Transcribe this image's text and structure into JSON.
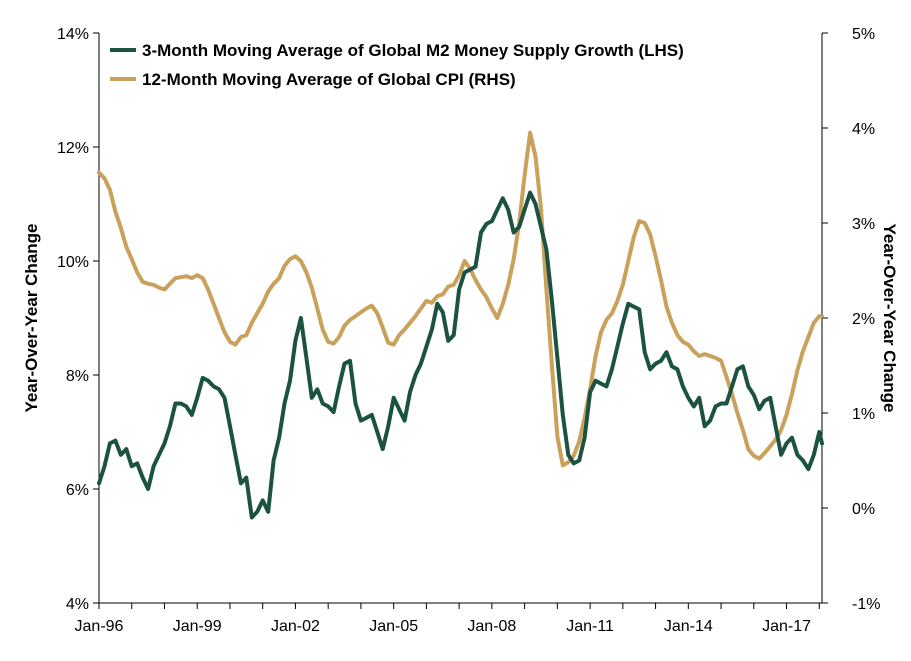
{
  "chart_data": {
    "type": "line",
    "x_start": "1996-01",
    "x_end": "2018-02",
    "x_ticks": [
      "Jan-96",
      "Jan-99",
      "Jan-02",
      "Jan-05",
      "Jan-08",
      "Jan-11",
      "Jan-14",
      "Jan-17"
    ],
    "y_left": {
      "label": "Year-Over-Year Change",
      "min": 4,
      "max": 14,
      "ticks": [
        "4%",
        "6%",
        "8%",
        "10%",
        "12%",
        "14%"
      ]
    },
    "y_right": {
      "label": "Year-Over-Year Change",
      "min": -1,
      "max": 5,
      "ticks": [
        "-1%",
        "0%",
        "1%",
        "2%",
        "3%",
        "4%",
        "5%"
      ]
    },
    "legend_position": "top-left",
    "series": [
      {
        "name": "3-Month Moving Average of Global M2 Money Supply Growth (LHS)",
        "axis": "left",
        "color": "#1b5240",
        "points": [
          [
            "1996-01",
            6.1
          ],
          [
            "1996-03",
            6.4
          ],
          [
            "1996-05",
            6.8
          ],
          [
            "1996-07",
            6.85
          ],
          [
            "1996-09",
            6.6
          ],
          [
            "1996-11",
            6.7
          ],
          [
            "1997-01",
            6.4
          ],
          [
            "1997-03",
            6.45
          ],
          [
            "1997-05",
            6.2
          ],
          [
            "1997-07",
            6.0
          ],
          [
            "1997-09",
            6.4
          ],
          [
            "1997-11",
            6.6
          ],
          [
            "1998-01",
            6.8
          ],
          [
            "1998-03",
            7.1
          ],
          [
            "1998-05",
            7.5
          ],
          [
            "1998-07",
            7.5
          ],
          [
            "1998-09",
            7.45
          ],
          [
            "1998-11",
            7.3
          ],
          [
            "1999-01",
            7.6
          ],
          [
            "1999-03",
            7.95
          ],
          [
            "1999-05",
            7.9
          ],
          [
            "1999-07",
            7.8
          ],
          [
            "1999-09",
            7.75
          ],
          [
            "1999-11",
            7.6
          ],
          [
            "2000-01",
            7.1
          ],
          [
            "2000-03",
            6.6
          ],
          [
            "2000-05",
            6.1
          ],
          [
            "2000-07",
            6.2
          ],
          [
            "2000-09",
            5.5
          ],
          [
            "2000-11",
            5.6
          ],
          [
            "2001-01",
            5.8
          ],
          [
            "2001-03",
            5.6
          ],
          [
            "2001-05",
            6.5
          ],
          [
            "2001-07",
            6.9
          ],
          [
            "2001-09",
            7.5
          ],
          [
            "2001-11",
            7.9
          ],
          [
            "2002-01",
            8.6
          ],
          [
            "2002-03",
            9.0
          ],
          [
            "2002-05",
            8.3
          ],
          [
            "2002-07",
            7.6
          ],
          [
            "2002-09",
            7.75
          ],
          [
            "2002-11",
            7.5
          ],
          [
            "2003-01",
            7.45
          ],
          [
            "2003-03",
            7.35
          ],
          [
            "2003-05",
            7.8
          ],
          [
            "2003-07",
            8.2
          ],
          [
            "2003-09",
            8.25
          ],
          [
            "2003-11",
            7.5
          ],
          [
            "2004-01",
            7.2
          ],
          [
            "2004-03",
            7.25
          ],
          [
            "2004-05",
            7.3
          ],
          [
            "2004-07",
            7.0
          ],
          [
            "2004-09",
            6.7
          ],
          [
            "2004-11",
            7.1
          ],
          [
            "2005-01",
            7.6
          ],
          [
            "2005-03",
            7.4
          ],
          [
            "2005-05",
            7.2
          ],
          [
            "2005-07",
            7.7
          ],
          [
            "2005-09",
            8.0
          ],
          [
            "2005-11",
            8.2
          ],
          [
            "2006-01",
            8.5
          ],
          [
            "2006-03",
            8.8
          ],
          [
            "2006-05",
            9.25
          ],
          [
            "2006-07",
            9.1
          ],
          [
            "2006-09",
            8.6
          ],
          [
            "2006-11",
            8.7
          ],
          [
            "2007-01",
            9.5
          ],
          [
            "2007-03",
            9.8
          ],
          [
            "2007-05",
            9.85
          ],
          [
            "2007-07",
            9.9
          ],
          [
            "2007-09",
            10.5
          ],
          [
            "2007-11",
            10.65
          ],
          [
            "2008-01",
            10.7
          ],
          [
            "2008-03",
            10.9
          ],
          [
            "2008-05",
            11.1
          ],
          [
            "2008-07",
            10.9
          ],
          [
            "2008-09",
            10.5
          ],
          [
            "2008-11",
            10.6
          ],
          [
            "2009-01",
            10.9
          ],
          [
            "2009-03",
            11.2
          ],
          [
            "2009-05",
            11.0
          ],
          [
            "2009-07",
            10.6
          ],
          [
            "2009-09",
            10.2
          ],
          [
            "2009-11",
            9.3
          ],
          [
            "2010-01",
            8.3
          ],
          [
            "2010-03",
            7.3
          ],
          [
            "2010-05",
            6.6
          ],
          [
            "2010-07",
            6.45
          ],
          [
            "2010-09",
            6.5
          ],
          [
            "2010-11",
            6.9
          ],
          [
            "2011-01",
            7.7
          ],
          [
            "2011-03",
            7.9
          ],
          [
            "2011-05",
            7.85
          ],
          [
            "2011-07",
            7.8
          ],
          [
            "2011-09",
            8.1
          ],
          [
            "2011-11",
            8.5
          ],
          [
            "2012-01",
            8.9
          ],
          [
            "2012-03",
            9.25
          ],
          [
            "2012-05",
            9.2
          ],
          [
            "2012-07",
            9.15
          ],
          [
            "2012-09",
            8.4
          ],
          [
            "2012-11",
            8.1
          ],
          [
            "2013-01",
            8.2
          ],
          [
            "2013-03",
            8.25
          ],
          [
            "2013-05",
            8.4
          ],
          [
            "2013-07",
            8.15
          ],
          [
            "2013-09",
            8.1
          ],
          [
            "2013-11",
            7.8
          ],
          [
            "2014-01",
            7.6
          ],
          [
            "2014-03",
            7.45
          ],
          [
            "2014-05",
            7.6
          ],
          [
            "2014-07",
            7.1
          ],
          [
            "2014-09",
            7.2
          ],
          [
            "2014-11",
            7.45
          ],
          [
            "2015-01",
            7.5
          ],
          [
            "2015-03",
            7.5
          ],
          [
            "2015-05",
            7.8
          ],
          [
            "2015-07",
            8.1
          ],
          [
            "2015-09",
            8.15
          ],
          [
            "2015-11",
            7.8
          ],
          [
            "2016-01",
            7.65
          ],
          [
            "2016-03",
            7.4
          ],
          [
            "2016-05",
            7.55
          ],
          [
            "2016-07",
            7.6
          ],
          [
            "2016-09",
            7.1
          ],
          [
            "2016-11",
            6.6
          ],
          [
            "2017-01",
            6.8
          ],
          [
            "2017-03",
            6.9
          ],
          [
            "2017-05",
            6.6
          ],
          [
            "2017-07",
            6.5
          ],
          [
            "2017-09",
            6.35
          ],
          [
            "2017-11",
            6.6
          ],
          [
            "2018-01",
            7.0
          ],
          [
            "2018-02",
            6.8
          ]
        ]
      },
      {
        "name": "12-Month Moving Average of Global CPI (RHS)",
        "axis": "right",
        "color": "#c9a15b",
        "points": [
          [
            "1996-01",
            3.53
          ],
          [
            "1996-03",
            3.47
          ],
          [
            "1996-05",
            3.35
          ],
          [
            "1996-07",
            3.12
          ],
          [
            "1996-09",
            2.95
          ],
          [
            "1996-11",
            2.75
          ],
          [
            "1997-01",
            2.62
          ],
          [
            "1997-03",
            2.48
          ],
          [
            "1997-05",
            2.38
          ],
          [
            "1997-07",
            2.36
          ],
          [
            "1997-09",
            2.35
          ],
          [
            "1997-11",
            2.32
          ],
          [
            "1998-01",
            2.3
          ],
          [
            "1998-03",
            2.36
          ],
          [
            "1998-05",
            2.42
          ],
          [
            "1998-07",
            2.43
          ],
          [
            "1998-09",
            2.44
          ],
          [
            "1998-11",
            2.42
          ],
          [
            "1999-01",
            2.45
          ],
          [
            "1999-03",
            2.42
          ],
          [
            "1999-05",
            2.3
          ],
          [
            "1999-07",
            2.15
          ],
          [
            "1999-09",
            2.0
          ],
          [
            "1999-11",
            1.85
          ],
          [
            "2000-01",
            1.75
          ],
          [
            "2000-03",
            1.72
          ],
          [
            "2000-05",
            1.8
          ],
          [
            "2000-07",
            1.82
          ],
          [
            "2000-09",
            1.95
          ],
          [
            "2000-11",
            2.05
          ],
          [
            "2001-01",
            2.15
          ],
          [
            "2001-03",
            2.28
          ],
          [
            "2001-05",
            2.36
          ],
          [
            "2001-07",
            2.42
          ],
          [
            "2001-09",
            2.55
          ],
          [
            "2001-11",
            2.62
          ],
          [
            "2002-01",
            2.65
          ],
          [
            "2002-03",
            2.6
          ],
          [
            "2002-05",
            2.48
          ],
          [
            "2002-07",
            2.32
          ],
          [
            "2002-09",
            2.1
          ],
          [
            "2002-11",
            1.88
          ],
          [
            "2003-01",
            1.75
          ],
          [
            "2003-03",
            1.73
          ],
          [
            "2003-05",
            1.8
          ],
          [
            "2003-07",
            1.92
          ],
          [
            "2003-09",
            1.98
          ],
          [
            "2003-11",
            2.02
          ],
          [
            "2004-01",
            2.06
          ],
          [
            "2004-03",
            2.1
          ],
          [
            "2004-05",
            2.13
          ],
          [
            "2004-07",
            2.05
          ],
          [
            "2004-09",
            1.9
          ],
          [
            "2004-11",
            1.74
          ],
          [
            "2005-01",
            1.72
          ],
          [
            "2005-03",
            1.82
          ],
          [
            "2005-05",
            1.88
          ],
          [
            "2005-07",
            1.95
          ],
          [
            "2005-09",
            2.02
          ],
          [
            "2005-11",
            2.1
          ],
          [
            "2006-01",
            2.18
          ],
          [
            "2006-03",
            2.16
          ],
          [
            "2006-05",
            2.23
          ],
          [
            "2006-07",
            2.25
          ],
          [
            "2006-09",
            2.33
          ],
          [
            "2006-11",
            2.35
          ],
          [
            "2007-01",
            2.45
          ],
          [
            "2007-03",
            2.6
          ],
          [
            "2007-05",
            2.52
          ],
          [
            "2007-07",
            2.4
          ],
          [
            "2007-09",
            2.3
          ],
          [
            "2007-11",
            2.22
          ],
          [
            "2008-01",
            2.1
          ],
          [
            "2008-03",
            2.0
          ],
          [
            "2008-05",
            2.15
          ],
          [
            "2008-07",
            2.35
          ],
          [
            "2008-09",
            2.62
          ],
          [
            "2008-11",
            3.0
          ],
          [
            "2009-01",
            3.5
          ],
          [
            "2009-03",
            3.95
          ],
          [
            "2009-05",
            3.7
          ],
          [
            "2009-07",
            3.15
          ],
          [
            "2009-09",
            2.3
          ],
          [
            "2009-11",
            1.5
          ],
          [
            "2010-01",
            0.75
          ],
          [
            "2010-03",
            0.45
          ],
          [
            "2010-05",
            0.48
          ],
          [
            "2010-07",
            0.55
          ],
          [
            "2010-09",
            0.7
          ],
          [
            "2010-11",
            0.95
          ],
          [
            "2011-01",
            1.25
          ],
          [
            "2011-03",
            1.6
          ],
          [
            "2011-05",
            1.85
          ],
          [
            "2011-07",
            1.98
          ],
          [
            "2011-09",
            2.05
          ],
          [
            "2011-11",
            2.18
          ],
          [
            "2012-01",
            2.35
          ],
          [
            "2012-03",
            2.6
          ],
          [
            "2012-05",
            2.85
          ],
          [
            "2012-07",
            3.02
          ],
          [
            "2012-09",
            3.0
          ],
          [
            "2012-11",
            2.88
          ],
          [
            "2013-01",
            2.65
          ],
          [
            "2013-03",
            2.4
          ],
          [
            "2013-05",
            2.12
          ],
          [
            "2013-07",
            1.95
          ],
          [
            "2013-09",
            1.82
          ],
          [
            "2013-11",
            1.75
          ],
          [
            "2014-01",
            1.72
          ],
          [
            "2014-03",
            1.65
          ],
          [
            "2014-05",
            1.6
          ],
          [
            "2014-07",
            1.62
          ],
          [
            "2014-09",
            1.6
          ],
          [
            "2014-11",
            1.58
          ],
          [
            "2015-01",
            1.55
          ],
          [
            "2015-03",
            1.38
          ],
          [
            "2015-05",
            1.2
          ],
          [
            "2015-07",
            1.0
          ],
          [
            "2015-09",
            0.82
          ],
          [
            "2015-11",
            0.62
          ],
          [
            "2016-01",
            0.55
          ],
          [
            "2016-03",
            0.52
          ],
          [
            "2016-05",
            0.58
          ],
          [
            "2016-07",
            0.65
          ],
          [
            "2016-09",
            0.72
          ],
          [
            "2016-11",
            0.82
          ],
          [
            "2017-01",
            0.98
          ],
          [
            "2017-03",
            1.2
          ],
          [
            "2017-05",
            1.45
          ],
          [
            "2017-07",
            1.65
          ],
          [
            "2017-09",
            1.8
          ],
          [
            "2017-11",
            1.95
          ],
          [
            "2018-01",
            2.02
          ],
          [
            "2018-02",
            2.02
          ]
        ]
      }
    ]
  }
}
